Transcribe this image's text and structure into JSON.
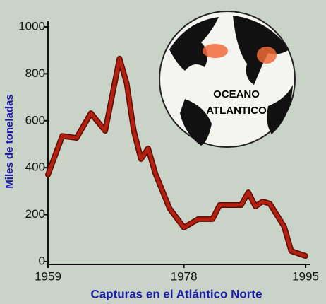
{
  "chart_data": {
    "type": "line",
    "ylabel": "Miles de toneladas",
    "xlabel": "Capturas en el Atlántico Norte",
    "annotation_lines": [
      "OCEANO",
      "ATLANTICO"
    ],
    "x": [
      1959,
      1961,
      1963,
      1965,
      1967,
      1969,
      1970,
      1971,
      1972,
      1973,
      1974,
      1976,
      1978,
      1980,
      1982,
      1983,
      1985,
      1986,
      1987,
      1988,
      1989,
      1990,
      1992,
      1993,
      1995
    ],
    "series": [
      {
        "color": "#b3200f",
        "values": [
          370,
          535,
          527,
          632,
          557,
          865,
          760,
          557,
          437,
          482,
          376,
          226,
          145,
          181,
          181,
          241,
          241,
          241,
          295,
          235,
          256,
          247,
          150,
          45,
          24
        ]
      }
    ],
    "xlim": [
      1959,
      1995
    ],
    "xticks": [
      1959,
      1978,
      1995
    ],
    "ylim": [
      0,
      1000
    ],
    "yticks": [
      0,
      200,
      400,
      600,
      800,
      1000
    ]
  }
}
